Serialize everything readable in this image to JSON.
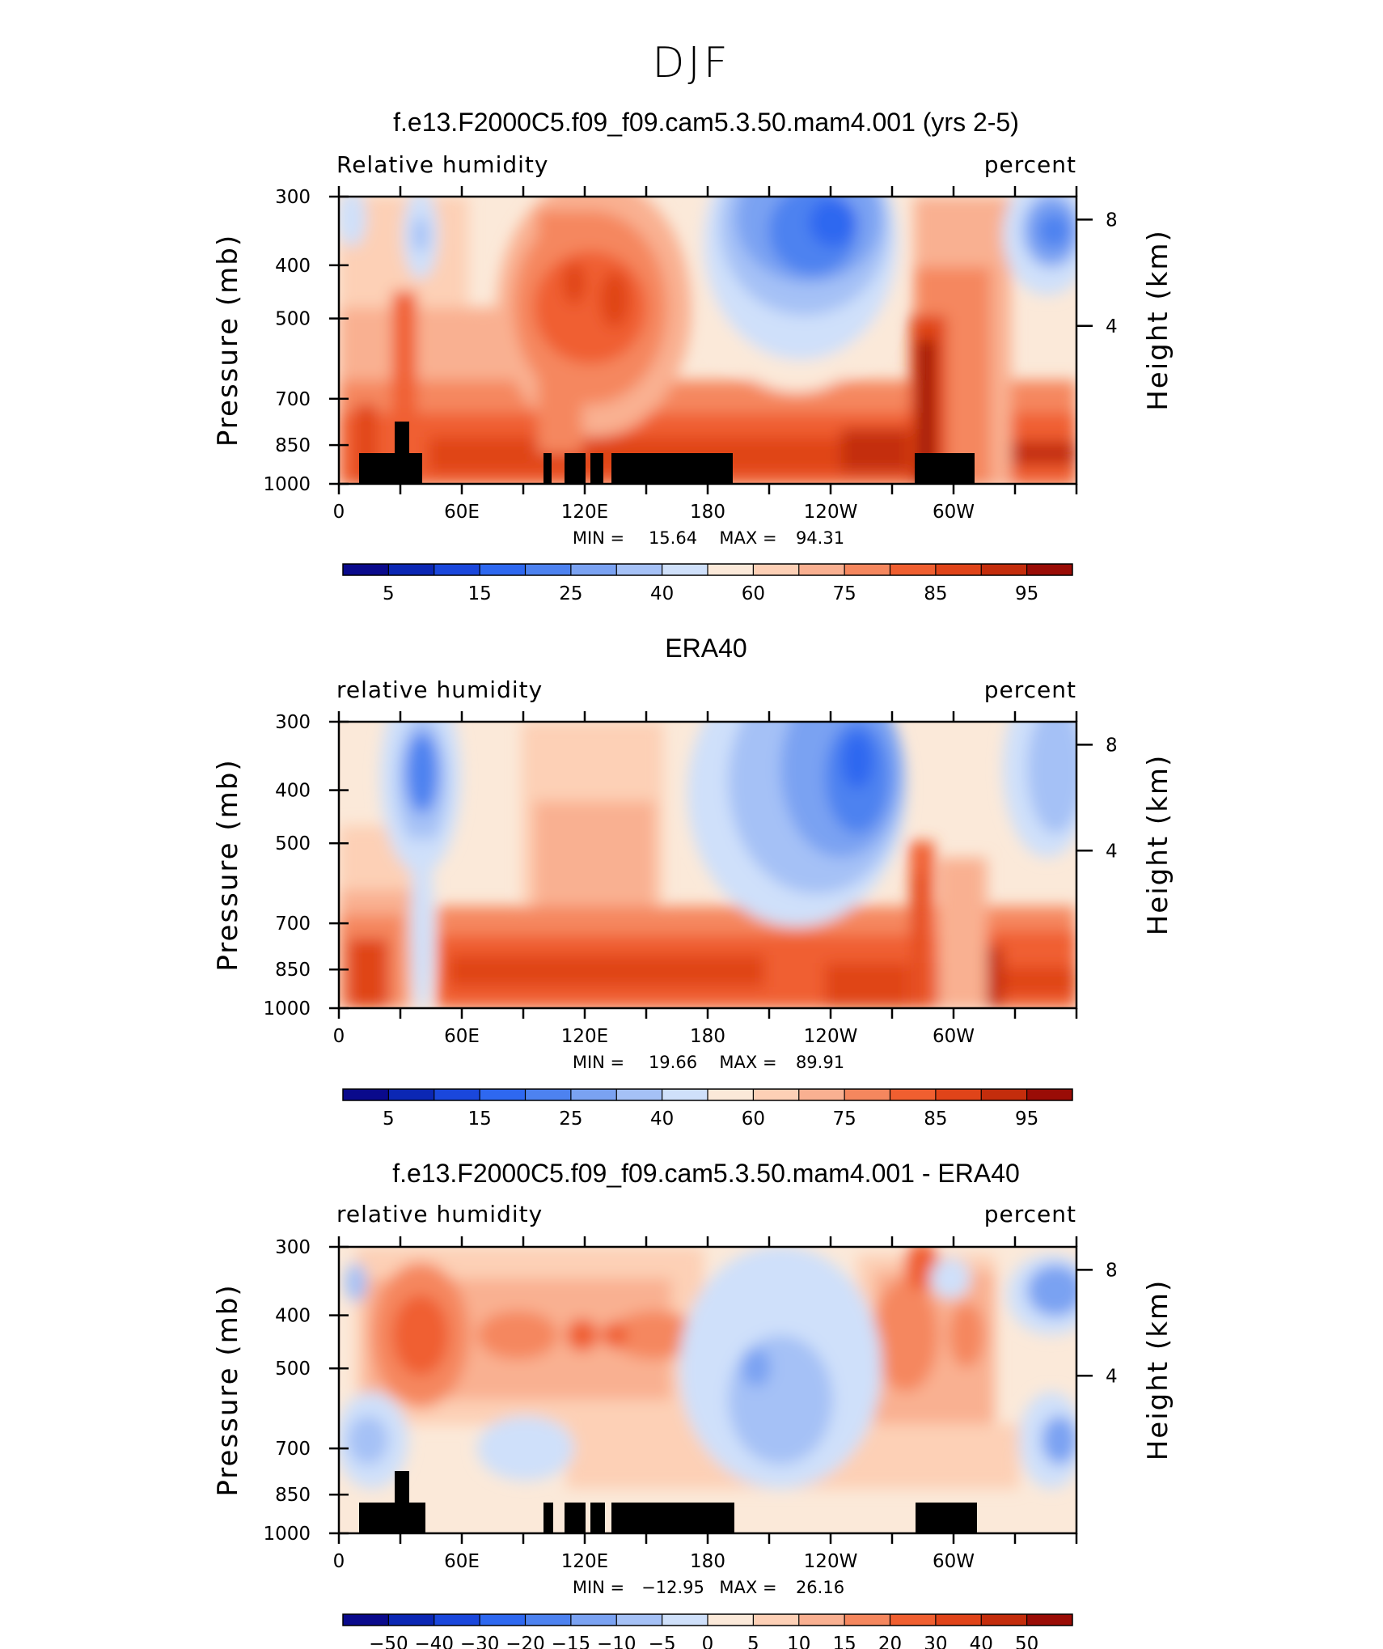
{
  "figure": {
    "title": "DJF"
  },
  "chart_data": [
    {
      "type": "heatmap",
      "title": "f.e13.F2000C5.f09_f09.cam5.3.50.mam4.001 (yrs 2-5)",
      "left_label": "Relative humidity",
      "right_label": "percent",
      "ylabel": "Pressure (mb)",
      "ylabel_right": "Height (km)",
      "x_ticks": [
        "0",
        "60E",
        "120E",
        "180",
        "120W",
        "60W"
      ],
      "y_ticks": [
        "300",
        "400",
        "500",
        "700",
        "850",
        "1000"
      ],
      "y_ticks_right": [
        "8",
        "4"
      ],
      "stats": {
        "min_label": "MIN =",
        "min": "15.64",
        "max_label": "MAX =",
        "max": "94.31"
      },
      "colorbar_labels": [
        "5",
        "15",
        "25",
        "40",
        "60",
        "75",
        "85",
        "95"
      ],
      "has_terrain_mask": true
    },
    {
      "type": "heatmap",
      "title": "ERA40",
      "left_label": "relative humidity",
      "right_label": "percent",
      "ylabel": "Pressure (mb)",
      "ylabel_right": "Height (km)",
      "x_ticks": [
        "0",
        "60E",
        "120E",
        "180",
        "120W",
        "60W"
      ],
      "y_ticks": [
        "300",
        "400",
        "500",
        "700",
        "850",
        "1000"
      ],
      "y_ticks_right": [
        "8",
        "4"
      ],
      "stats": {
        "min_label": "MIN =",
        "min": "19.66",
        "max_label": "MAX =",
        "max": "89.91"
      },
      "colorbar_labels": [
        "5",
        "15",
        "25",
        "40",
        "60",
        "75",
        "85",
        "95"
      ],
      "has_terrain_mask": false
    },
    {
      "type": "heatmap",
      "title": "f.e13.F2000C5.f09_f09.cam5.3.50.mam4.001 - ERA40",
      "left_label": "relative humidity",
      "right_label": "percent",
      "ylabel": "Pressure (mb)",
      "ylabel_right": "Height (km)",
      "x_ticks": [
        "0",
        "60E",
        "120E",
        "180",
        "120W",
        "60W"
      ],
      "y_ticks": [
        "300",
        "400",
        "500",
        "700",
        "850",
        "1000"
      ],
      "y_ticks_right": [
        "8",
        "4"
      ],
      "stats": {
        "min_label": "MIN =",
        "min": "−12.95",
        "max_label": "MAX =",
        "max": "26.16"
      },
      "colorbar_labels": [
        "−50",
        "−40",
        "−30",
        "−20",
        "−15",
        "−10",
        "−5",
        "0",
        "5",
        "10",
        "15",
        "20",
        "30",
        "40",
        "50"
      ],
      "has_terrain_mask": true
    }
  ],
  "palette": [
    "#0a0a8c",
    "#0b27b4",
    "#1a47dc",
    "#2e68f0",
    "#4d82f0",
    "#7aa2f2",
    "#a5c1f6",
    "#cfe0fa",
    "#fbe9d9",
    "#fdd0b6",
    "#f9b091",
    "#f5875e",
    "#f05f30",
    "#e04419",
    "#c42d0c",
    "#9a0c06"
  ]
}
